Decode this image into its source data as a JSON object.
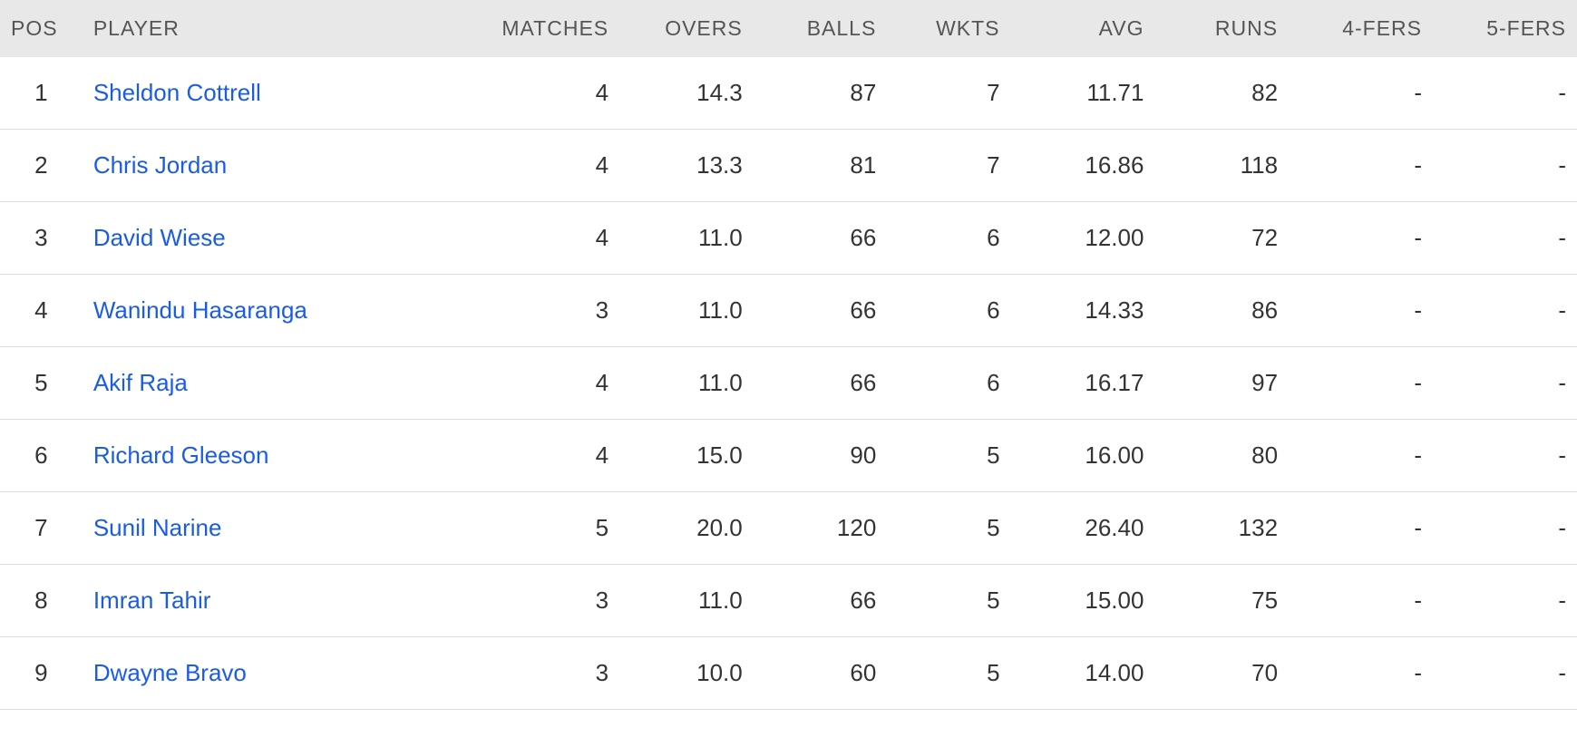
{
  "table": {
    "columns": [
      {
        "key": "pos",
        "label": "POS"
      },
      {
        "key": "player",
        "label": "PLAYER"
      },
      {
        "key": "matches",
        "label": "MATCHES"
      },
      {
        "key": "overs",
        "label": "OVERS"
      },
      {
        "key": "balls",
        "label": "BALLS"
      },
      {
        "key": "wkts",
        "label": "WKTS"
      },
      {
        "key": "avg",
        "label": "AVG"
      },
      {
        "key": "runs",
        "label": "RUNS"
      },
      {
        "key": "fers4",
        "label": "4-FERS"
      },
      {
        "key": "fers5",
        "label": "5-FERS"
      }
    ],
    "rows": [
      {
        "pos": "1",
        "player": "Sheldon Cottrell",
        "matches": "4",
        "overs": "14.3",
        "balls": "87",
        "wkts": "7",
        "avg": "11.71",
        "runs": "82",
        "fers4": "-",
        "fers5": "-"
      },
      {
        "pos": "2",
        "player": "Chris Jordan",
        "matches": "4",
        "overs": "13.3",
        "balls": "81",
        "wkts": "7",
        "avg": "16.86",
        "runs": "118",
        "fers4": "-",
        "fers5": "-"
      },
      {
        "pos": "3",
        "player": "David Wiese",
        "matches": "4",
        "overs": "11.0",
        "balls": "66",
        "wkts": "6",
        "avg": "12.00",
        "runs": "72",
        "fers4": "-",
        "fers5": "-"
      },
      {
        "pos": "4",
        "player": "Wanindu Hasaranga",
        "matches": "3",
        "overs": "11.0",
        "balls": "66",
        "wkts": "6",
        "avg": "14.33",
        "runs": "86",
        "fers4": "-",
        "fers5": "-"
      },
      {
        "pos": "5",
        "player": "Akif Raja",
        "matches": "4",
        "overs": "11.0",
        "balls": "66",
        "wkts": "6",
        "avg": "16.17",
        "runs": "97",
        "fers4": "-",
        "fers5": "-"
      },
      {
        "pos": "6",
        "player": "Richard Gleeson",
        "matches": "4",
        "overs": "15.0",
        "balls": "90",
        "wkts": "5",
        "avg": "16.00",
        "runs": "80",
        "fers4": "-",
        "fers5": "-"
      },
      {
        "pos": "7",
        "player": "Sunil Narine",
        "matches": "5",
        "overs": "20.0",
        "balls": "120",
        "wkts": "5",
        "avg": "26.40",
        "runs": "132",
        "fers4": "-",
        "fers5": "-"
      },
      {
        "pos": "8",
        "player": "Imran Tahir",
        "matches": "3",
        "overs": "11.0",
        "balls": "66",
        "wkts": "5",
        "avg": "15.00",
        "runs": "75",
        "fers4": "-",
        "fers5": "-"
      },
      {
        "pos": "9",
        "player": "Dwayne Bravo",
        "matches": "3",
        "overs": "10.0",
        "balls": "60",
        "wkts": "5",
        "avg": "14.00",
        "runs": "70",
        "fers4": "-",
        "fers5": "-"
      }
    ],
    "header_bg": "#e8e8e8",
    "header_color": "#555555",
    "link_color": "#1a5ce6",
    "text_color": "#333333",
    "border_color": "#dddddd",
    "body_bg": "#ffffff",
    "header_fontsize": 23,
    "cell_fontsize": 26
  }
}
